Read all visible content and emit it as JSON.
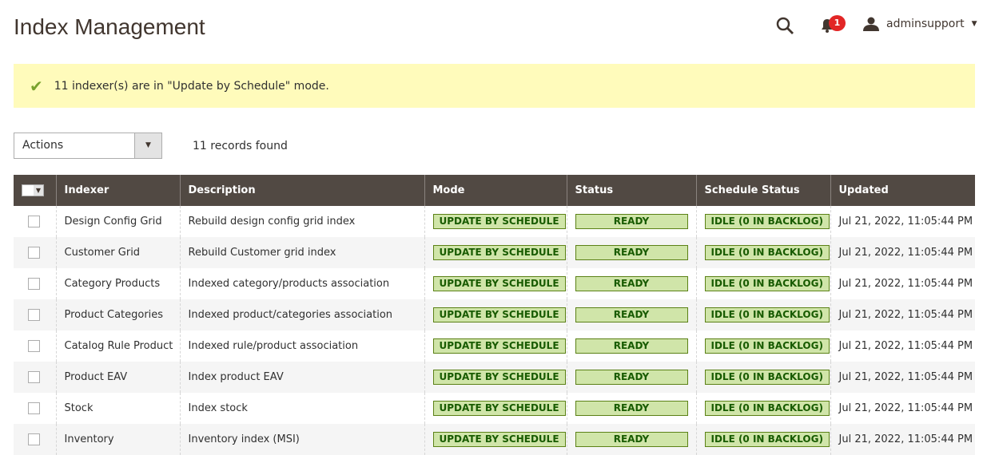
{
  "header": {
    "title": "Index Management",
    "notifications_count": "1",
    "username": "adminsupport"
  },
  "message": {
    "text": "11 indexer(s) are in \"Update by Schedule\" mode."
  },
  "toolbar": {
    "actions_label": "Actions",
    "records_found": "11 records found"
  },
  "table": {
    "columns": [
      "Indexer",
      "Description",
      "Mode",
      "Status",
      "Schedule Status",
      "Updated"
    ],
    "rows": [
      {
        "indexer": "Design Config Grid",
        "description": "Rebuild design config grid index",
        "mode": "UPDATE BY SCHEDULE",
        "status": "READY",
        "schedule": "IDLE (0 IN BACKLOG)",
        "updated": "Jul 21, 2022, 11:05:44 PM"
      },
      {
        "indexer": "Customer Grid",
        "description": "Rebuild Customer grid index",
        "mode": "UPDATE BY SCHEDULE",
        "status": "READY",
        "schedule": "IDLE (0 IN BACKLOG)",
        "updated": "Jul 21, 2022, 11:05:44 PM"
      },
      {
        "indexer": "Category Products",
        "description": "Indexed category/products association",
        "mode": "UPDATE BY SCHEDULE",
        "status": "READY",
        "schedule": "IDLE (0 IN BACKLOG)",
        "updated": "Jul 21, 2022, 11:05:44 PM"
      },
      {
        "indexer": "Product Categories",
        "description": "Indexed product/categories association",
        "mode": "UPDATE BY SCHEDULE",
        "status": "READY",
        "schedule": "IDLE (0 IN BACKLOG)",
        "updated": "Jul 21, 2022, 11:05:44 PM"
      },
      {
        "indexer": "Catalog Rule Product",
        "description": "Indexed rule/product association",
        "mode": "UPDATE BY SCHEDULE",
        "status": "READY",
        "schedule": "IDLE (0 IN BACKLOG)",
        "updated": "Jul 21, 2022, 11:05:44 PM"
      },
      {
        "indexer": "Product EAV",
        "description": "Index product EAV",
        "mode": "UPDATE BY SCHEDULE",
        "status": "READY",
        "schedule": "IDLE (0 IN BACKLOG)",
        "updated": "Jul 21, 2022, 11:05:44 PM"
      },
      {
        "indexer": "Stock",
        "description": "Index stock",
        "mode": "UPDATE BY SCHEDULE",
        "status": "READY",
        "schedule": "IDLE (0 IN BACKLOG)",
        "updated": "Jul 21, 2022, 11:05:44 PM"
      },
      {
        "indexer": "Inventory",
        "description": "Inventory index (MSI)",
        "mode": "UPDATE BY SCHEDULE",
        "status": "READY",
        "schedule": "IDLE (0 IN BACKLOG)",
        "updated": "Jul 21, 2022, 11:05:44 PM"
      }
    ]
  }
}
